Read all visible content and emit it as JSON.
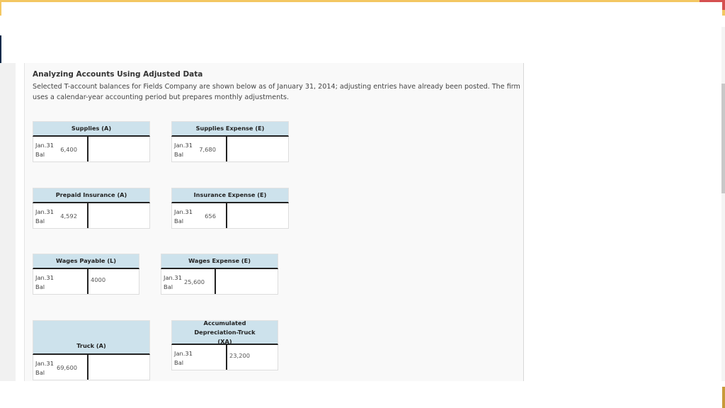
{
  "colors": {
    "top_bar": "#f3c762",
    "header_fill": "#cde2ec",
    "panel": "#f9f9f9"
  },
  "problem": {
    "title": "Analyzing Accounts Using Adjusted Data",
    "description": "Selected T-account balances for Fields Company are shown below as of January 31, 2014; adjusting entries have already been posted. The firm uses a calendar-year accounting period but prepares monthly adjustments."
  },
  "accounts": [
    {
      "name": "Supplies (A)",
      "date": "Jan.31",
      "label": "Bal",
      "balance": "6,400",
      "side": "debit"
    },
    {
      "name": "Supplies Expense (E)",
      "date": "Jan.31",
      "label": "Bal",
      "balance": "7,680",
      "side": "debit"
    },
    {
      "name": "Prepaid Insurance (A)",
      "date": "Jan.31",
      "label": "Bal",
      "balance": "4,592",
      "side": "debit"
    },
    {
      "name": "Insurance Expense (E)",
      "date": "Jan.31",
      "label": "Bal",
      "balance": "656",
      "side": "debit"
    },
    {
      "name": "Wages Payable (L)",
      "date": "Jan.31",
      "label": "Bal",
      "balance": "4000",
      "side": "credit"
    },
    {
      "name": "Wages Expense (E)",
      "date": "Jan.31",
      "label": "Bal",
      "balance": "25,600",
      "side": "debit"
    },
    {
      "name": "Truck (A)",
      "date": "Jan.31",
      "label": "Bal",
      "balance": "69,600",
      "side": "debit"
    },
    {
      "name": "Accumulated Depreciation-Truck (XA)",
      "date": "Jan.31",
      "label": "Bal",
      "balance": "23,200",
      "side": "credit"
    }
  ]
}
